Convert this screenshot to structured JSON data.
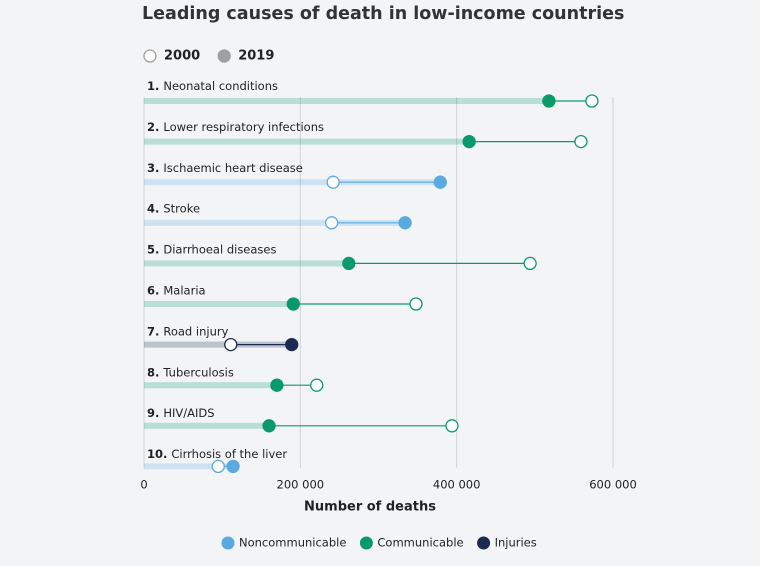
{
  "chart_data": {
    "type": "dumbbell",
    "title": "Leading causes of death in low-income countries",
    "x_label": "Number of deaths",
    "ranks": [
      "1.",
      "2.",
      "3.",
      "4.",
      "5.",
      "6.",
      "7.",
      "8.",
      "9.",
      "10."
    ],
    "categories": [
      "Neonatal conditions",
      "Lower respiratory infections",
      "Ischaemic heart disease",
      "Stroke",
      "Diarrhoeal diseases",
      "Malaria",
      "Road injury",
      "Tuberculosis",
      "HIV/AIDS",
      "Cirrhosis of the liver"
    ],
    "category_group": [
      1,
      1,
      0,
      0,
      1,
      1,
      2,
      1,
      1,
      0
    ],
    "groups": [
      {
        "name": "Noncommunicable",
        "color": "#5aa9e0"
      },
      {
        "name": "Communicable",
        "color": "#0a9a6a"
      },
      {
        "name": "Injuries",
        "color": "#1b2a52"
      }
    ],
    "series": [
      {
        "name": "2000",
        "filled": false,
        "legend_color": "#a0a0a0",
        "values": [
          573000,
          559000,
          242000,
          240000,
          494000,
          348000,
          111000,
          221000,
          394000,
          95000
        ]
      },
      {
        "name": "2019",
        "filled": true,
        "legend_color": "#a0a0a0",
        "values": [
          518000,
          416000,
          379000,
          334000,
          262000,
          191000,
          189000,
          170000,
          160000,
          114000
        ]
      }
    ],
    "xlim": [
      0,
      600000
    ],
    "xticks": [
      0,
      {
        "value": 200000,
        "label": "200 000"
      },
      {
        "value": 400000,
        "label": "400 000"
      },
      {
        "value": 600000,
        "label": "600 000"
      }
    ],
    "grid": true
  }
}
